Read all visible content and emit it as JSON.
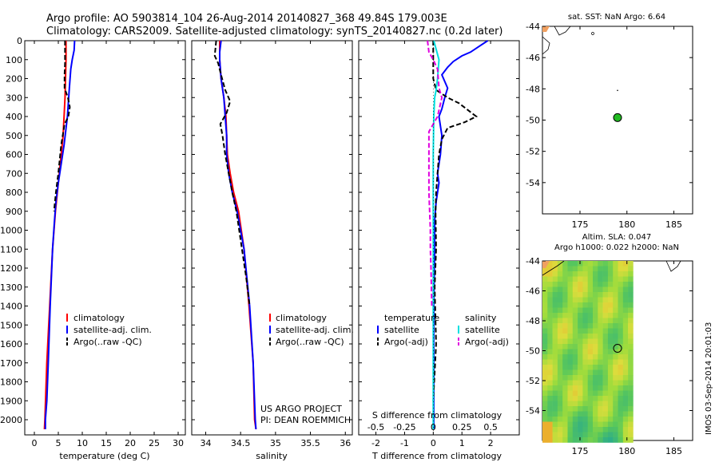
{
  "header": {
    "line1": "Argo profile: AO 5903814_104 26-Aug-2014 20140827_368 49.84S 179.003E",
    "line2": "Climatology: CARS2009. Satellite-adjusted climatology: synTS_20140827.nc (0.2d later)"
  },
  "chart_data": [
    {
      "type": "line",
      "id": "temperature",
      "xlabel": "temperature (deg C)",
      "ylabel": "",
      "xlim": [
        -2,
        31.5
      ],
      "ylim": [
        2080,
        0
      ],
      "x_ticks": [
        "0",
        "5",
        "10",
        "15",
        "20",
        "25",
        "30"
      ],
      "y_ticks": [
        "0",
        "100",
        "200",
        "300",
        "400",
        "500",
        "600",
        "700",
        "800",
        "900",
        "1000",
        "1100",
        "1200",
        "1300",
        "1400",
        "1500",
        "1600",
        "1700",
        "1800",
        "1900",
        "2000"
      ],
      "legend": [
        "climatology",
        "satellite-adj. clim.",
        "Argo(..raw -QC)"
      ],
      "series": [
        {
          "name": "climatology",
          "color": "#ff0000",
          "style": "solid",
          "x": [
            6.6,
            6.6,
            6.5,
            6.4,
            6.2,
            6.0,
            5.6,
            5.2,
            4.8,
            4.4,
            3.8,
            3.2,
            2.6,
            2.2,
            2.1
          ],
          "y": [
            0,
            100,
            200,
            300,
            400,
            500,
            600,
            700,
            800,
            900,
            1100,
            1400,
            1700,
            2000,
            2050
          ]
        },
        {
          "name": "satellite-adj. clim.",
          "color": "#0000ff",
          "style": "solid",
          "x": [
            8.4,
            8.3,
            7.9,
            7.6,
            7.3,
            6.9,
            6.2,
            5.6,
            5.0,
            4.5,
            4.2,
            3.8,
            3.3,
            2.9,
            2.6,
            2.3,
            2.3
          ],
          "y": [
            0,
            50,
            100,
            150,
            250,
            400,
            550,
            650,
            750,
            850,
            950,
            1100,
            1400,
            1700,
            1900,
            2000,
            2050
          ]
        },
        {
          "name": "Argo(..raw -QC)",
          "color": "#000000",
          "style": "dashed",
          "x": [
            6.4,
            6.4,
            6.4,
            6.3,
            6.3,
            7.0,
            7.4,
            7.1,
            6.3,
            5.6,
            5.0,
            4.5,
            4.1
          ],
          "y": [
            0,
            60,
            120,
            180,
            250,
            300,
            350,
            400,
            440,
            550,
            700,
            800,
            900
          ]
        }
      ]
    },
    {
      "type": "line",
      "id": "salinity",
      "xlabel": "salinity",
      "ylabel": "",
      "xlim": [
        33.8,
        36.1
      ],
      "ylim": [
        2080,
        0
      ],
      "x_ticks": [
        "34",
        "34.5",
        "35",
        "35.5",
        "36"
      ],
      "legend": [
        "climatology",
        "satellite-adj. clim.",
        "Argo(..raw -QC)"
      ],
      "annotation": [
        "US ARGO PROJECT",
        "PI: DEAN ROEMMICH"
      ],
      "series": [
        {
          "name": "climatology",
          "color": "#ff0000",
          "style": "solid",
          "x": [
            34.2,
            34.2,
            34.22,
            34.26,
            34.29,
            34.3,
            34.31,
            34.35,
            34.4,
            34.47,
            34.55,
            34.62,
            34.68,
            34.7,
            34.72
          ],
          "y": [
            0,
            100,
            200,
            300,
            400,
            500,
            600,
            700,
            800,
            900,
            1100,
            1400,
            1700,
            2000,
            2050
          ]
        },
        {
          "name": "satellite-adj. clim.",
          "color": "#0000ff",
          "style": "solid",
          "x": [
            34.22,
            34.2,
            34.2,
            34.22,
            34.26,
            34.28,
            34.3,
            34.3,
            34.33,
            34.38,
            34.45,
            34.55,
            34.63,
            34.68,
            34.71,
            34.72
          ],
          "y": [
            0,
            60,
            100,
            200,
            300,
            400,
            500,
            600,
            700,
            800,
            900,
            1100,
            1400,
            1700,
            2000,
            2050
          ]
        },
        {
          "name": "Argo(..raw -QC)",
          "color": "#000000",
          "style": "dashed",
          "x": [
            34.15,
            34.13,
            34.18,
            34.22,
            34.28,
            34.35,
            34.3,
            34.21,
            34.24,
            34.28,
            34.33,
            34.38,
            34.44,
            34.48,
            34.52,
            34.58,
            34.63
          ],
          "y": [
            0,
            80,
            120,
            180,
            260,
            320,
            380,
            440,
            500,
            600,
            700,
            800,
            900,
            1000,
            1100,
            1250,
            1400
          ]
        }
      ]
    },
    {
      "type": "line",
      "id": "difference",
      "xlabel": "T difference from climatology",
      "xlabel_top": "S difference from climatology",
      "xlim": [
        -2.6,
        3.0
      ],
      "ylim": [
        2080,
        0
      ],
      "x_ticks": [
        "-2",
        "-1",
        "0",
        "1",
        "2"
      ],
      "x_ticks_top": [
        "-0.5",
        "-0.25",
        "0",
        "0.25",
        "0.5"
      ],
      "legend_title_t": "temperature",
      "legend_title_s": "salinity",
      "legend_t": [
        "satellite",
        "Argo(-adj)"
      ],
      "legend_s": [
        "satellite",
        "Argo(-adj)"
      ],
      "series": [
        {
          "name": "T satellite",
          "color": "#0000ff",
          "style": "solid",
          "x": [
            1.9,
            1.6,
            1.3,
            1.0,
            0.7,
            0.5,
            0.3,
            0.5,
            0.4,
            0.3,
            0.2,
            0.3,
            0.25,
            0.15,
            0.2,
            0.1,
            0.05,
            0.05,
            0.02,
            0.02,
            0.02
          ],
          "y": [
            0,
            30,
            60,
            80,
            110,
            140,
            180,
            250,
            300,
            360,
            400,
            500,
            600,
            700,
            750,
            850,
            950,
            1100,
            1400,
            1700,
            2050
          ]
        },
        {
          "name": "T Argo(-adj)",
          "color": "#000000",
          "style": "dashed",
          "x": [
            0.0,
            0.0,
            0.0,
            0.1,
            0.5,
            0.9,
            1.5,
            1.1,
            0.5,
            0.3,
            0.2,
            0.15,
            0.1,
            0.08,
            0.1,
            0.05,
            0.1,
            0.0
          ],
          "y": [
            0,
            80,
            200,
            260,
            300,
            330,
            400,
            430,
            460,
            520,
            600,
            700,
            800,
            900,
            1100,
            1300,
            1600,
            1900
          ]
        },
        {
          "name": "S satellite",
          "color": "#00e0e0",
          "style": "solid",
          "x": [
            0.02,
            0.2,
            0.15,
            0.1,
            0.05,
            0.02,
            0.0,
            0.0,
            0.0,
            0.0,
            0.0
          ],
          "y": [
            0,
            100,
            200,
            260,
            300,
            400,
            600,
            900,
            1300,
            1700,
            2050
          ]
        },
        {
          "name": "S Argo(-adj)",
          "color": "#e000e0",
          "style": "dashed",
          "x": [
            -0.2,
            -0.15,
            0.0,
            0.15,
            0.2,
            0.3,
            0.15,
            0.0,
            -0.15,
            -0.15,
            -0.15,
            -0.1,
            -0.1,
            -0.08,
            -0.05
          ],
          "y": [
            0,
            60,
            100,
            150,
            250,
            300,
            400,
            440,
            480,
            600,
            800,
            1000,
            1100,
            1200,
            1400
          ]
        }
      ]
    },
    {
      "type": "scatter",
      "id": "sst-map",
      "title": "sat. SST: NaN Argo: 6.64",
      "xlim": [
        171,
        187
      ],
      "ylim": [
        -56,
        -44
      ],
      "x_ticks": [
        "175",
        "180",
        "185"
      ],
      "y_ticks": [
        "-44",
        "-46",
        "-48",
        "-50",
        "-52",
        "-54"
      ],
      "points": [
        {
          "x": 179.0,
          "y": -49.84,
          "color": "#22bb22"
        }
      ]
    },
    {
      "type": "heatmap",
      "id": "sla-map",
      "title_line1": "Altim. SLA: 0.047",
      "title_line2": "Argo h1000: 0.022 h2000: NaN",
      "side_text": "IMOS 03-Sep-2014 20:01:03",
      "xlim": [
        171,
        187
      ],
      "ylim": [
        -56,
        -44
      ],
      "x_ticks": [
        "175",
        "180",
        "185"
      ],
      "y_ticks": [
        "-44",
        "-46",
        "-48",
        "-50",
        "-52",
        "-54"
      ],
      "points": [
        {
          "x": 179.0,
          "y": -49.84
        }
      ]
    }
  ]
}
